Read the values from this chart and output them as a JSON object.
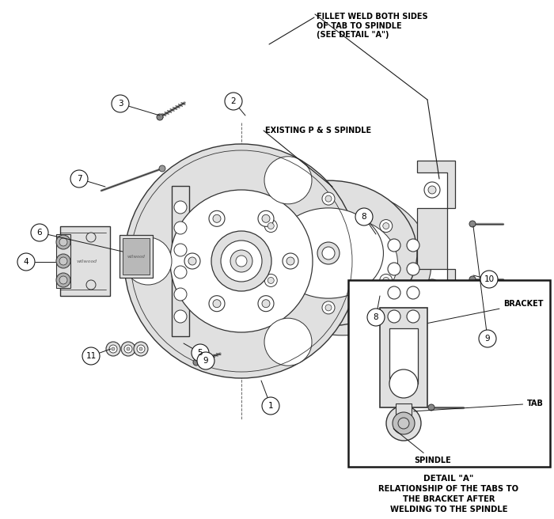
{
  "bg_color": "#ffffff",
  "line_color": "#1a1a1a",
  "part_fill": "#c8c8c8",
  "part_fill_light": "#e0e0e0",
  "part_edge": "#333333",
  "annotations": {
    "fillet_weld": "FILLET WELD BOTH SIDES\nOF TAB TO SPINDLE\n(SEE DETAIL \"A\")",
    "existing_spindle": "EXISTING P & S SPINDLE",
    "detail_a_title": "DETAIL \"A\"",
    "detail_a_body": "RELATIONSHIP OF THE TABS TO\nTHE BRACKET AFTER\nWELDING TO THE SPINDLE",
    "bracket_label": "BRACKET",
    "tab_label": "TAB",
    "spindle_label": "SPINDLE"
  }
}
